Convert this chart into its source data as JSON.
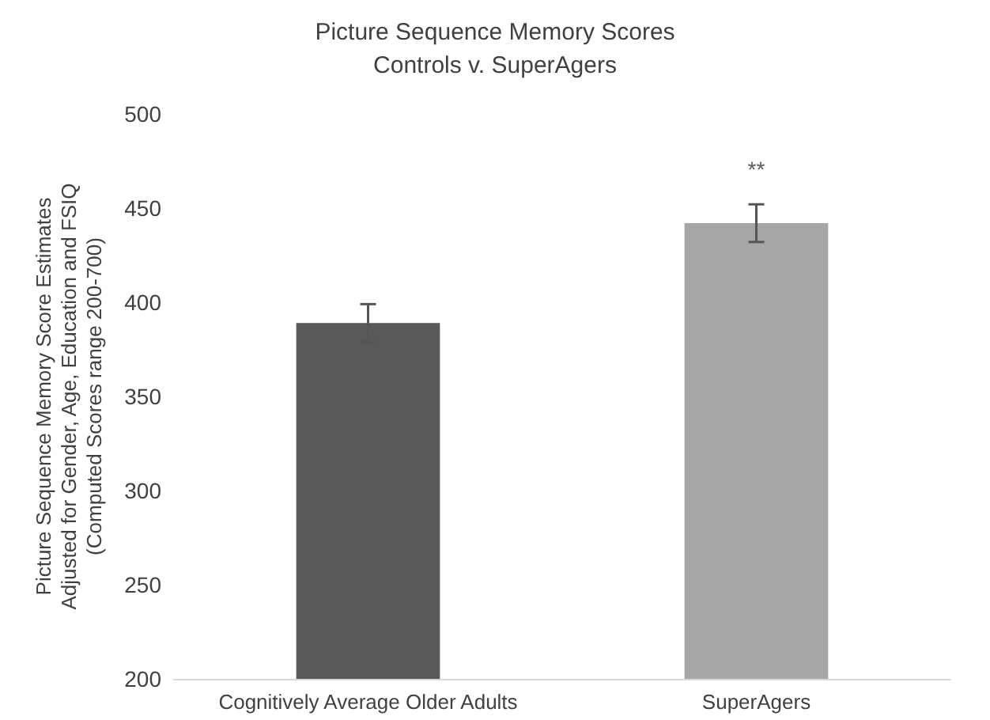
{
  "chart_data": {
    "type": "bar",
    "title": "Picture Sequence Memory Scores",
    "subtitle": "Controls v. SuperAgers",
    "ylabel": "Picture Sequence Memory Score Estimates\nAdjusted for Gender, Age, Education and FSIQ\n(Computed Scores range 200-700)",
    "categories": [
      "Cognitively Average Older Adults",
      "SuperAgers"
    ],
    "values": [
      389,
      442
    ],
    "colors": [
      "#595959",
      "#a6a6a6"
    ],
    "errors": [
      10,
      10
    ],
    "ylim": [
      200,
      500
    ],
    "yticks": [
      200,
      250,
      300,
      350,
      400,
      450,
      500
    ],
    "grid": false,
    "annotations": [
      "**"
    ]
  }
}
